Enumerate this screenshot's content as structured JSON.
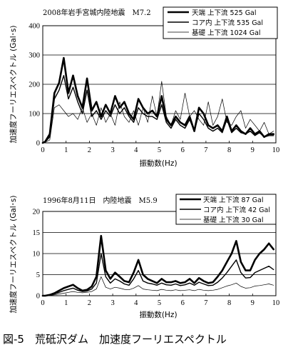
{
  "caption": "図-5　荒砥沢ダム　加速度フーリエスペクトル",
  "chart_data": [
    {
      "type": "line",
      "title": "2008年岩手宮城内陸地震　M7.2",
      "xlabel": "振動数(Hz)",
      "ylabel": "加速度フーリエスペクトル (Gal･s)",
      "xlim": [
        0,
        10
      ],
      "ylim": [
        0,
        400
      ],
      "xticks": [
        "0",
        "1",
        "2",
        "3",
        "4",
        "5",
        "6",
        "7",
        "8",
        "9",
        "10"
      ],
      "yticks": [
        "0",
        "100",
        "200",
        "300",
        "400"
      ],
      "grid": "horizontal",
      "legend_position": "top-right",
      "x": [
        0.1,
        0.3,
        0.5,
        0.7,
        0.9,
        1.1,
        1.3,
        1.5,
        1.7,
        1.9,
        2.1,
        2.3,
        2.5,
        2.7,
        2.9,
        3.1,
        3.3,
        3.5,
        3.7,
        3.9,
        4.1,
        4.3,
        4.5,
        4.7,
        4.9,
        5.1,
        5.3,
        5.5,
        5.7,
        5.9,
        6.1,
        6.3,
        6.5,
        6.7,
        6.9,
        7.1,
        7.3,
        7.5,
        7.7,
        7.9,
        8.1,
        8.3,
        8.5,
        8.7,
        8.9,
        9.1,
        9.3,
        9.5,
        9.7,
        9.9
      ],
      "series": [
        {
          "name": "天端 上下流 525 Gal",
          "style": "thick",
          "values": [
            4,
            30,
            170,
            205,
            290,
            170,
            230,
            160,
            120,
            220,
            110,
            140,
            90,
            130,
            100,
            160,
            120,
            140,
            100,
            80,
            150,
            120,
            100,
            110,
            90,
            160,
            80,
            60,
            90,
            70,
            60,
            90,
            40,
            120,
            100,
            60,
            50,
            60,
            40,
            90,
            40,
            60,
            40,
            30,
            50,
            30,
            40,
            20,
            30,
            30
          ]
        },
        {
          "name": "コア内 上下流 535 Gal",
          "style": "medium",
          "values": [
            3,
            20,
            150,
            180,
            230,
            150,
            190,
            140,
            100,
            180,
            90,
            110,
            80,
            110,
            90,
            130,
            100,
            120,
            90,
            70,
            120,
            100,
            90,
            90,
            80,
            130,
            70,
            50,
            80,
            60,
            50,
            80,
            40,
            100,
            80,
            50,
            40,
            50,
            35,
            80,
            35,
            50,
            35,
            30,
            40,
            25,
            35,
            20,
            25,
            25
          ]
        },
        {
          "name": "基礎 上下流 1024 Gal",
          "style": "thin",
          "values": [
            2,
            10,
            120,
            130,
            110,
            90,
            100,
            80,
            120,
            70,
            100,
            60,
            120,
            70,
            100,
            60,
            140,
            90,
            70,
            110,
            60,
            120,
            70,
            160,
            90,
            210,
            90,
            60,
            110,
            80,
            170,
            90,
            110,
            80,
            60,
            140,
            60,
            90,
            150,
            70,
            60,
            90,
            110,
            50,
            80,
            60,
            40,
            70,
            30,
            40
          ]
        }
      ]
    },
    {
      "type": "line",
      "title": "1996年8月11日　内陸地震　M5.9",
      "xlabel": "振動数(Hz)",
      "ylabel": "加速度フーリエスペクトル (Gal･s)",
      "xlim": [
        0,
        10
      ],
      "ylim": [
        0,
        20
      ],
      "xticks": [
        "0",
        "1",
        "2",
        "3",
        "4",
        "5",
        "6",
        "7",
        "8",
        "9",
        "10"
      ],
      "yticks": [
        "0",
        "5",
        "10",
        "15",
        "20"
      ],
      "grid": "horizontal",
      "legend_position": "top-right",
      "x": [
        0.1,
        0.3,
        0.5,
        0.7,
        0.9,
        1.1,
        1.3,
        1.5,
        1.7,
        1.9,
        2.1,
        2.3,
        2.5,
        2.7,
        2.9,
        3.1,
        3.3,
        3.5,
        3.7,
        3.9,
        4.1,
        4.3,
        4.5,
        4.7,
        4.9,
        5.1,
        5.3,
        5.5,
        5.7,
        5.9,
        6.1,
        6.3,
        6.5,
        6.7,
        6.9,
        7.1,
        7.3,
        7.5,
        7.7,
        7.9,
        8.1,
        8.3,
        8.5,
        8.7,
        8.9,
        9.1,
        9.3,
        9.5,
        9.7,
        9.9
      ],
      "series": [
        {
          "name": "天端 上下流 87 Gal",
          "style": "thick",
          "values": [
            0,
            0.2,
            0.6,
            1.2,
            1.8,
            2.2,
            2.6,
            1.8,
            1.2,
            1.4,
            2.2,
            4.5,
            14.2,
            6,
            4,
            5.5,
            4.5,
            3.5,
            3.2,
            5.5,
            8.5,
            5,
            4,
            3.5,
            3,
            4,
            3.2,
            3.2,
            3.5,
            3,
            3.2,
            4,
            3,
            4.2,
            3.5,
            3,
            3.2,
            4.5,
            6,
            8,
            10,
            13,
            8,
            6,
            6,
            8.5,
            10,
            11,
            12.4,
            11
          ]
        },
        {
          "name": "コア内 上下流 42 Gal",
          "style": "medium",
          "values": [
            0,
            0.1,
            0.4,
            0.8,
            1.2,
            1.5,
            1.8,
            1.3,
            1,
            1.1,
            1.6,
            3,
            10,
            4.5,
            3,
            4,
            3.5,
            2.8,
            2.5,
            4,
            6,
            3.5,
            3,
            2.8,
            2.5,
            3,
            2.6,
            2.5,
            2.8,
            2.4,
            2.6,
            3,
            2.5,
            3.2,
            2.8,
            2.4,
            2.5,
            3.2,
            4.2,
            5.5,
            7,
            8.5,
            5.5,
            4.2,
            4.3,
            5.5,
            6,
            6.5,
            7,
            6.2
          ]
        },
        {
          "name": "基礎 上下流 30 Gal",
          "style": "thin",
          "values": [
            0,
            0.1,
            0.2,
            0.4,
            0.6,
            0.8,
            1,
            0.8,
            0.7,
            0.8,
            1,
            1.6,
            4.5,
            2,
            1.6,
            2,
            1.8,
            1.5,
            1.4,
            1.8,
            2.4,
            1.6,
            1.4,
            1.3,
            1.2,
            1.5,
            1.3,
            1.2,
            1.4,
            1.2,
            1.3,
            1.4,
            1.2,
            1.5,
            1.3,
            1.2,
            1.3,
            1.5,
            1.9,
            2.3,
            2.6,
            3,
            2.2,
            1.8,
            1.9,
            2.3,
            2.4,
            2.6,
            2.8,
            2.5
          ]
        }
      ]
    }
  ]
}
